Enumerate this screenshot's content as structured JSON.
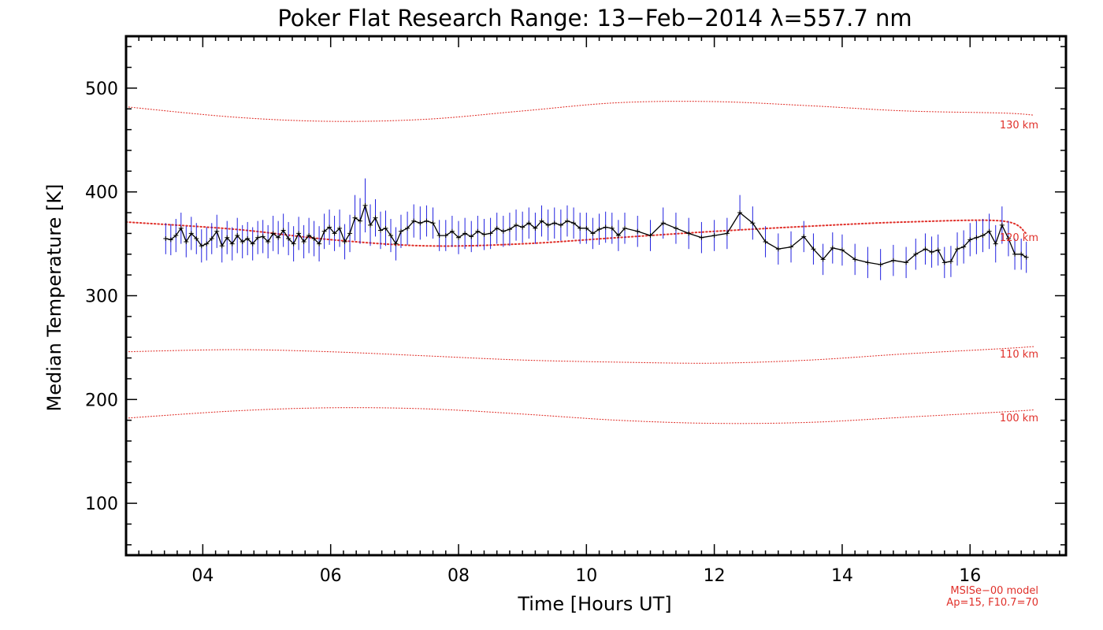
{
  "chart_data": {
    "type": "line",
    "title": "Poker Flat Research Range: 13−Feb−2014 λ=557.7 nm",
    "xlabel": "Time [Hours UT]",
    "ylabel": "Median Temperature [K]",
    "xlim": [
      2.8,
      17.5
    ],
    "ylim": [
      50,
      550
    ],
    "x_ticks": [
      4,
      6,
      8,
      10,
      12,
      14,
      16
    ],
    "x_tick_labels": [
      "04",
      "06",
      "08",
      "10",
      "12",
      "14",
      "16"
    ],
    "y_ticks": [
      100,
      200,
      300,
      400,
      500
    ],
    "y_tick_labels": [
      "100",
      "200",
      "300",
      "400",
      "500"
    ],
    "grid": false,
    "colors": {
      "measurement_line": "#000000",
      "error_bars": "#2020e0",
      "model_lines": "#e0302a"
    },
    "series": [
      {
        "name": "measured",
        "x": [
          3.42,
          3.5,
          3.58,
          3.66,
          3.74,
          3.82,
          3.9,
          3.98,
          4.06,
          4.14,
          4.22,
          4.3,
          4.38,
          4.46,
          4.54,
          4.62,
          4.7,
          4.78,
          4.86,
          4.94,
          5.02,
          5.1,
          5.18,
          5.26,
          5.34,
          5.42,
          5.5,
          5.58,
          5.66,
          5.74,
          5.82,
          5.9,
          5.98,
          6.06,
          6.14,
          6.22,
          6.3,
          6.38,
          6.46,
          6.54,
          6.62,
          6.7,
          6.78,
          6.86,
          6.94,
          7.02,
          7.1,
          7.2,
          7.3,
          7.4,
          7.5,
          7.6,
          7.7,
          7.8,
          7.9,
          8.0,
          8.1,
          8.2,
          8.3,
          8.4,
          8.5,
          8.6,
          8.7,
          8.8,
          8.9,
          9.0,
          9.1,
          9.2,
          9.3,
          9.4,
          9.5,
          9.6,
          9.7,
          9.8,
          9.9,
          10.0,
          10.1,
          10.2,
          10.3,
          10.4,
          10.5,
          10.6,
          10.8,
          11.0,
          11.2,
          11.4,
          11.6,
          11.8,
          12.0,
          12.2,
          12.4,
          12.6,
          12.8,
          13.0,
          13.2,
          13.4,
          13.55,
          13.7,
          13.85,
          14.0,
          14.2,
          14.4,
          14.6,
          14.8,
          15.0,
          15.15,
          15.3,
          15.4,
          15.5,
          15.6,
          15.7,
          15.8,
          15.9,
          16.0,
          16.1,
          16.2,
          16.3,
          16.4,
          16.5,
          16.6,
          16.7,
          16.8,
          16.88
        ],
        "y": [
          355,
          354,
          358,
          365,
          352,
          360,
          355,
          348,
          350,
          355,
          362,
          348,
          356,
          350,
          358,
          352,
          355,
          350,
          356,
          357,
          352,
          360,
          356,
          363,
          355,
          350,
          360,
          352,
          358,
          355,
          350,
          362,
          366,
          360,
          365,
          352,
          360,
          375,
          372,
          387,
          368,
          375,
          363,
          365,
          358,
          350,
          362,
          365,
          372,
          370,
          372,
          370,
          358,
          358,
          362,
          356,
          360,
          357,
          362,
          359,
          360,
          365,
          362,
          364,
          368,
          366,
          370,
          365,
          372,
          368,
          370,
          368,
          372,
          370,
          365,
          365,
          360,
          364,
          366,
          365,
          358,
          365,
          362,
          358,
          370,
          365,
          360,
          356,
          358,
          360,
          380,
          370,
          352,
          345,
          347,
          357,
          345,
          335,
          346,
          344,
          335,
          332,
          330,
          334,
          332,
          340,
          345,
          342,
          344,
          332,
          333,
          345,
          347,
          354,
          356,
          358,
          362,
          350,
          368,
          355,
          340,
          340,
          337
        ],
        "error": [
          15,
          15,
          16,
          15,
          15,
          16,
          15,
          16,
          16,
          15,
          16,
          16,
          16,
          16,
          17,
          16,
          16,
          16,
          16,
          16,
          16,
          17,
          16,
          16,
          16,
          17,
          16,
          16,
          17,
          17,
          17,
          17,
          17,
          17,
          18,
          17,
          18,
          22,
          22,
          26,
          20,
          18,
          18,
          17,
          16,
          16,
          16,
          16,
          16,
          16,
          15,
          15,
          15,
          15,
          15,
          16,
          15,
          15,
          15,
          15,
          15,
          15,
          15,
          16,
          15,
          15,
          15,
          15,
          15,
          15,
          15,
          15,
          15,
          15,
          15,
          15,
          15,
          15,
          15,
          15,
          15,
          15,
          15,
          15,
          15,
          15,
          15,
          15,
          15,
          15,
          17,
          16,
          15,
          15,
          15,
          15,
          15,
          15,
          15,
          15,
          15,
          15,
          15,
          15,
          15,
          15,
          15,
          15,
          15,
          15,
          15,
          16,
          16,
          16,
          16,
          16,
          17,
          18,
          18,
          17,
          15,
          15,
          15
        ]
      },
      {
        "name": "130 km",
        "x": [
          2.8,
          4.5,
          6.0,
          7.5,
          9.0,
          10.5,
          12.0,
          13.5,
          15.0,
          16.5,
          17.0
        ],
        "y": [
          482,
          472,
          468,
          470,
          478,
          486,
          487,
          483,
          478,
          476,
          474
        ]
      },
      {
        "name": "120 km",
        "x": [
          2.8,
          4.5,
          6.0,
          7.5,
          9.0,
          10.5,
          12.0,
          13.5,
          15.0,
          16.5,
          16.88
        ],
        "y": [
          371,
          364,
          354,
          348,
          350,
          356,
          362,
          367,
          371,
          372,
          360
        ]
      },
      {
        "name": "110 km",
        "x": [
          2.8,
          4.5,
          6.0,
          7.5,
          9.0,
          10.5,
          12.0,
          13.5,
          15.0,
          16.5,
          17.0
        ],
        "y": [
          246,
          248,
          246,
          242,
          238,
          236,
          235,
          238,
          244,
          249,
          251
        ]
      },
      {
        "name": "100 km",
        "x": [
          2.8,
          4.5,
          6.0,
          7.5,
          9.0,
          10.5,
          12.0,
          13.5,
          15.0,
          16.5,
          17.0
        ],
        "y": [
          182,
          189,
          192,
          191,
          186,
          180,
          177,
          178,
          183,
          188,
          190
        ]
      }
    ],
    "annotations": {
      "model_label_130": "130 km",
      "model_label_120": "120 km",
      "model_label_110": "110 km",
      "model_label_100": "100 km",
      "model_note_line1": "MSISe−00 model",
      "model_note_line2": "Ap=15, F10.7=70"
    }
  }
}
